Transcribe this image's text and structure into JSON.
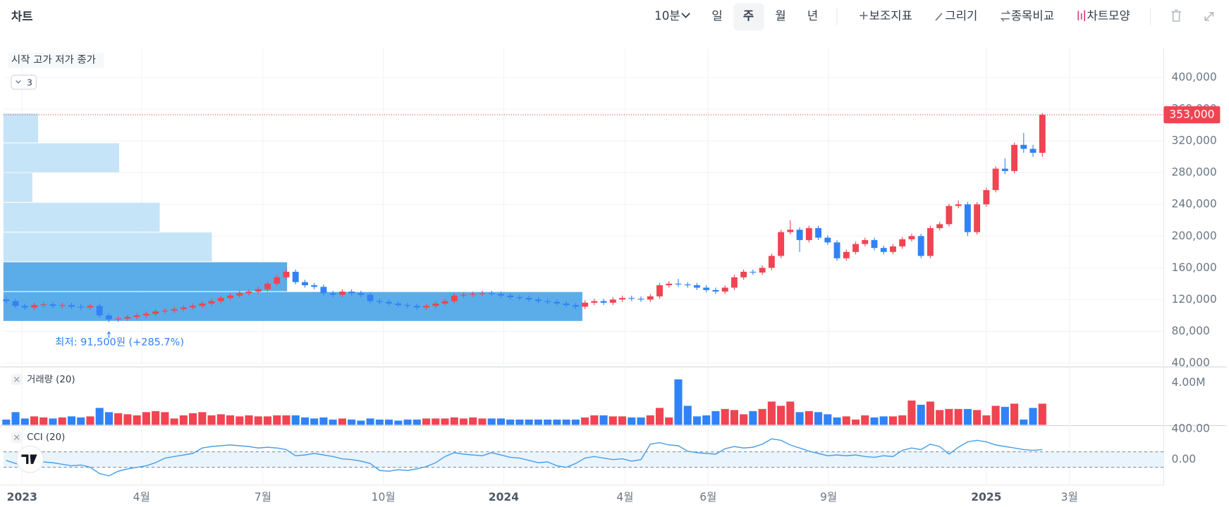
{
  "header": {
    "title": "차트",
    "interval": "10분",
    "periods": [
      "일",
      "주",
      "월",
      "년"
    ],
    "selected": 1,
    "tools": [
      "보조지표",
      "그리기",
      "종목비교",
      "차트모양"
    ]
  },
  "chart_data": [
    {
      "type": "candlestick",
      "legend": "시작 고가 저가 종가",
      "hidden_count": 3,
      "up_color": "#f04452",
      "down_color": "#3182f6",
      "xlim": [
        -0.3,
        124
      ],
      "ylim": [
        35000,
        436500
      ],
      "yticks": [
        {
          "value": 40000,
          "label": "40,000"
        },
        {
          "value": 80000,
          "label": "80,000"
        },
        {
          "value": 120000,
          "label": "120,000"
        },
        {
          "value": 160000,
          "label": "160,000"
        },
        {
          "value": 200000,
          "label": "200,000"
        },
        {
          "value": 240000,
          "label": "240,000"
        },
        {
          "value": 280000,
          "label": "280,000"
        },
        {
          "value": 320000,
          "label": "320,000"
        },
        {
          "value": 360000,
          "label": "360,000"
        },
        {
          "value": 400000,
          "label": "400,000"
        }
      ],
      "xticks": [
        {
          "value": 1.7,
          "label": "2023"
        },
        {
          "value": 14.5,
          "label": "4월"
        },
        {
          "value": 27.5,
          "label": "7월"
        },
        {
          "value": 40.4,
          "label": "10월"
        },
        {
          "value": 53.3,
          "label": "2024"
        },
        {
          "value": 66.3,
          "label": "4월"
        },
        {
          "value": 75.2,
          "label": "6월"
        },
        {
          "value": 88.1,
          "label": "9월"
        },
        {
          "value": 105,
          "label": "2025"
        },
        {
          "value": 113.9,
          "label": "3월"
        }
      ],
      "grid": true,
      "last_price_label": "353,000",
      "annotation": "최저: 91,500원 (+285.7%)",
      "open": [
        120000,
        118000,
        112000,
        110000,
        113000,
        114000,
        112000,
        113000,
        111000,
        110000,
        112000,
        100000,
        95000,
        96000,
        98000,
        100000,
        102000,
        105000,
        106000,
        108000,
        110000,
        112000,
        115000,
        118000,
        122000,
        125000,
        128000,
        130000,
        133000,
        140000,
        148000,
        155000,
        142000,
        138000,
        136000,
        128000,
        126000,
        130000,
        128000,
        126000,
        118000,
        117000,
        115000,
        113000,
        112000,
        110000,
        112000,
        115000,
        118000,
        125000,
        126000,
        127000,
        128000,
        127000,
        125000,
        123000,
        122000,
        120000,
        118000,
        117000,
        115000,
        113000,
        111000,
        116000,
        118000,
        116000,
        120000,
        122000,
        121000,
        120000,
        124000,
        138000,
        140000,
        139000,
        138000,
        135000,
        132000,
        130000,
        135000,
        148000,
        155000,
        154000,
        160000,
        175000,
        205000,
        208000,
        195000,
        210000,
        198000,
        192000,
        172000,
        180000,
        190000,
        195000,
        185000,
        180000,
        187000,
        196000,
        200000,
        175000,
        210000,
        215000,
        238000,
        240000,
        205000,
        240000,
        258000,
        285000,
        282000,
        315000,
        310000,
        305000
      ],
      "high": [
        123000,
        121000,
        115000,
        116000,
        117000,
        117000,
        116000,
        116000,
        114000,
        115000,
        115000,
        103000,
        99000,
        101000,
        103000,
        105000,
        108000,
        109000,
        111000,
        113000,
        115000,
        118000,
        121000,
        125000,
        128000,
        131000,
        133000,
        136000,
        143000,
        151000,
        158000,
        158000,
        145000,
        141000,
        139000,
        131000,
        133000,
        133000,
        131000,
        129000,
        121000,
        120000,
        118000,
        116000,
        115000,
        115000,
        118000,
        121000,
        128000,
        129000,
        130000,
        131000,
        131000,
        130000,
        128000,
        126000,
        125000,
        123000,
        121000,
        120000,
        118000,
        116000,
        119000,
        121000,
        121000,
        123000,
        125000,
        125000,
        124000,
        127000,
        141000,
        143000,
        146000,
        142000,
        141000,
        138000,
        135000,
        138000,
        151000,
        158000,
        158000,
        163000,
        178000,
        208000,
        220000,
        211000,
        213000,
        213000,
        201000,
        195000,
        183000,
        193000,
        198000,
        198000,
        188000,
        190000,
        199000,
        203000,
        203000,
        213000,
        218000,
        241000,
        245000,
        243000,
        243000,
        261000,
        288000,
        298000,
        318000,
        330000,
        315000,
        355000
      ],
      "low": [
        115000,
        109000,
        107000,
        107000,
        110000,
        109000,
        109000,
        108000,
        107000,
        107000,
        97000,
        91500,
        92000,
        93000,
        95000,
        97000,
        99000,
        102000,
        103000,
        105000,
        107000,
        109000,
        112000,
        115000,
        119000,
        122000,
        125000,
        127000,
        130000,
        137000,
        145000,
        139000,
        135000,
        133000,
        125000,
        123000,
        123000,
        125000,
        123000,
        115000,
        114000,
        112000,
        110000,
        109000,
        107000,
        107000,
        109000,
        112000,
        115000,
        122000,
        123000,
        124000,
        124000,
        122000,
        120000,
        119000,
        117000,
        115000,
        114000,
        112000,
        110000,
        108000,
        108000,
        113000,
        113000,
        113000,
        117000,
        118000,
        117000,
        117000,
        121000,
        135000,
        136000,
        135000,
        132000,
        129000,
        127000,
        127000,
        132000,
        145000,
        151000,
        151000,
        157000,
        172000,
        202000,
        180000,
        192000,
        195000,
        189000,
        169000,
        169000,
        177000,
        187000,
        182000,
        177000,
        177000,
        184000,
        193000,
        172000,
        172000,
        207000,
        212000,
        235000,
        200000,
        202000,
        237000,
        255000,
        278000,
        279000,
        305000,
        300000,
        300000
      ],
      "close": [
        118000,
        112000,
        110000,
        113000,
        114000,
        112000,
        113000,
        111000,
        110000,
        112000,
        100000,
        95000,
        96000,
        98000,
        100000,
        102000,
        105000,
        106000,
        108000,
        110000,
        112000,
        115000,
        118000,
        122000,
        125000,
        128000,
        130000,
        133000,
        140000,
        148000,
        155000,
        142000,
        138000,
        136000,
        128000,
        126000,
        130000,
        128000,
        126000,
        118000,
        117000,
        115000,
        113000,
        112000,
        110000,
        112000,
        115000,
        118000,
        125000,
        126000,
        127000,
        128000,
        127000,
        125000,
        123000,
        122000,
        120000,
        118000,
        117000,
        115000,
        113000,
        111000,
        116000,
        118000,
        116000,
        120000,
        122000,
        121000,
        120000,
        124000,
        138000,
        140000,
        139000,
        138000,
        135000,
        132000,
        130000,
        135000,
        148000,
        155000,
        154000,
        160000,
        175000,
        205000,
        208000,
        195000,
        210000,
        198000,
        192000,
        172000,
        180000,
        190000,
        195000,
        185000,
        180000,
        187000,
        196000,
        200000,
        175000,
        210000,
        215000,
        238000,
        240000,
        205000,
        240000,
        258000,
        285000,
        282000,
        315000,
        310000,
        305000,
        353000
      ],
      "volume_profile": {
        "bins": [
          92500,
          130000,
          167500,
          205000,
          242500,
          280000,
          317500,
          355000
        ],
        "values": [
          100,
          49,
          36,
          27,
          5,
          20,
          6
        ],
        "xlim": [
          0,
          100
        ],
        "colors": [
          "#5aade8",
          "#5aade8",
          "#c6e4f8",
          "#c6e4f8",
          "#c6e4f8",
          "#c6e4f8",
          "#c6e4f8"
        ]
      }
    },
    {
      "type": "bar",
      "title": "거래량 (20)",
      "ylim": [
        0,
        5400000
      ],
      "yticks": [
        {
          "value": 4000000,
          "label": "4.00M"
        }
      ],
      "values": [
        500000,
        1200000,
        600000,
        800000,
        700000,
        600000,
        700000,
        800000,
        700000,
        800000,
        1600000,
        1200000,
        1100000,
        1000000,
        900000,
        1200000,
        1300000,
        1200000,
        600000,
        900000,
        1100000,
        1200000,
        900000,
        1000000,
        900000,
        800000,
        900000,
        800000,
        800000,
        900000,
        900000,
        900000,
        700000,
        600000,
        700000,
        500000,
        600000,
        500000,
        400000,
        600000,
        500000,
        500000,
        400000,
        500000,
        500000,
        600000,
        600000,
        600000,
        700000,
        600000,
        700000,
        600000,
        600000,
        600000,
        500000,
        500000,
        500000,
        500000,
        500000,
        500000,
        500000,
        500000,
        700000,
        900000,
        900000,
        800000,
        800000,
        700000,
        700000,
        900000,
        1600000,
        700000,
        4300000,
        1800000,
        800000,
        900000,
        1300000,
        1500000,
        1400000,
        1000000,
        1300000,
        1500000,
        2200000,
        1800000,
        2200000,
        1200000,
        1300000,
        1200000,
        1000000,
        700000,
        800000,
        500000,
        900000,
        700000,
        800000,
        800000,
        900000,
        2300000,
        1900000,
        2200000,
        1400000,
        1500000,
        1500000,
        1500000,
        1400000,
        900000,
        1800000,
        1700000,
        2000000,
        500000,
        1600000,
        2000000
      ]
    },
    {
      "type": "line",
      "title": "CCI (20)",
      "color": "#4a9fe8",
      "band_color": "#e9f4fd",
      "ylim": [
        -330,
        430
      ],
      "levels": [
        -100,
        100
      ],
      "yticks": [
        {
          "value": 400,
          "label": "400.00"
        },
        {
          "value": 0,
          "label": "0.00"
        }
      ],
      "values": [
        -10,
        -50,
        -80,
        -60,
        -30,
        -40,
        -60,
        -80,
        -70,
        -100,
        -180,
        -210,
        -150,
        -120,
        -100,
        -80,
        -40,
        20,
        40,
        60,
        80,
        150,
        170,
        180,
        190,
        180,
        170,
        150,
        160,
        150,
        130,
        50,
        60,
        80,
        60,
        40,
        10,
        0,
        -20,
        -50,
        -140,
        -150,
        -130,
        -140,
        -120,
        -90,
        -40,
        40,
        90,
        70,
        60,
        50,
        90,
        60,
        30,
        20,
        -10,
        -40,
        -30,
        -80,
        -100,
        -50,
        20,
        40,
        20,
        0,
        10,
        -20,
        0,
        200,
        220,
        190,
        180,
        110,
        90,
        80,
        70,
        140,
        170,
        150,
        160,
        200,
        270,
        250,
        190,
        150,
        110,
        80,
        50,
        60,
        50,
        60,
        40,
        30,
        50,
        40,
        120,
        150,
        130,
        200,
        170,
        70,
        160,
        230,
        250,
        230,
        190,
        170,
        150,
        130,
        120,
        130
      ]
    }
  ]
}
